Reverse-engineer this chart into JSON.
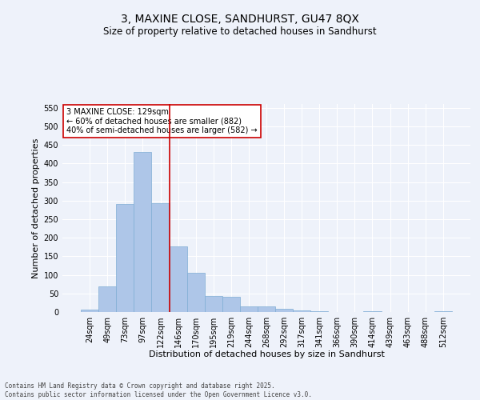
{
  "title": "3, MAXINE CLOSE, SANDHURST, GU47 8QX",
  "subtitle": "Size of property relative to detached houses in Sandhurst",
  "xlabel": "Distribution of detached houses by size in Sandhurst",
  "ylabel": "Number of detached properties",
  "categories": [
    "24sqm",
    "49sqm",
    "73sqm",
    "97sqm",
    "122sqm",
    "146sqm",
    "170sqm",
    "195sqm",
    "219sqm",
    "244sqm",
    "268sqm",
    "292sqm",
    "317sqm",
    "341sqm",
    "366sqm",
    "390sqm",
    "414sqm",
    "439sqm",
    "463sqm",
    "488sqm",
    "512sqm"
  ],
  "bar_heights": [
    7,
    70,
    290,
    430,
    293,
    176,
    105,
    44,
    40,
    15,
    15,
    8,
    5,
    3,
    0,
    0,
    3,
    0,
    0,
    0,
    3
  ],
  "bar_color": "#aec6e8",
  "bar_edge_color": "#7fadd4",
  "background_color": "#eef2fa",
  "grid_color": "#ffffff",
  "vline_x": 4.5,
  "vline_color": "#cc0000",
  "ylim": [
    0,
    560
  ],
  "yticks": [
    0,
    50,
    100,
    150,
    200,
    250,
    300,
    350,
    400,
    450,
    500,
    550
  ],
  "annotation_text": "3 MAXINE CLOSE: 129sqm\n← 60% of detached houses are smaller (882)\n40% of semi-detached houses are larger (582) →",
  "annotation_box_color": "#ffffff",
  "annotation_box_edge": "#cc0000",
  "footer": "Contains HM Land Registry data © Crown copyright and database right 2025.\nContains public sector information licensed under the Open Government Licence v3.0.",
  "title_fontsize": 10,
  "axis_label_fontsize": 8,
  "tick_fontsize": 7,
  "annot_fontsize": 7
}
